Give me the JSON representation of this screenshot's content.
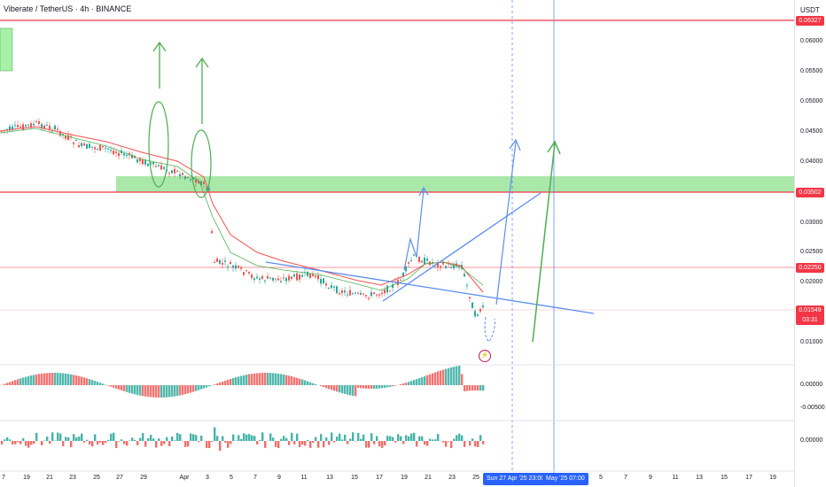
{
  "symbol_title": "Viberate / TetherUS · 4h · BINANCE",
  "currency": "USDT",
  "price_ticks": [
    "0.06000",
    "0.05500",
    "0.05000",
    "0.04500",
    "0.04000",
    "0.03000",
    "0.02500",
    "0.02000",
    "0.01000"
  ],
  "price_tags": [
    {
      "value": "0.06327",
      "color": "#f23645"
    },
    {
      "value": "0.03502",
      "color": "#f23645"
    },
    {
      "value": "0.02250",
      "color": "#f23645"
    }
  ],
  "last_price": {
    "value": "0.01549",
    "countdown": "03:31",
    "color": "#f23645"
  },
  "osc1_ticks": [
    "0.00000",
    "-0.00500"
  ],
  "osc2_ticks": [
    "0.00000"
  ],
  "x_labels": [
    "7",
    "19",
    "21",
    "23",
    "25",
    "27",
    "29",
    "Apr",
    "3",
    "5",
    "7",
    "9",
    "11",
    "13",
    "15",
    "17",
    "19",
    "21",
    "23",
    "25",
    "5",
    "7",
    "9",
    "11",
    "13",
    "15",
    "17",
    "19"
  ],
  "x_highlights": [
    "Sun 27 Apr '25  23:00",
    "May '25  07:00"
  ],
  "lightning_icon": "⚡",
  "colors": {
    "up": "#26a69a",
    "down": "#ef5350",
    "levels": "#f23645",
    "zone": "#8ee08e",
    "lines": "#5b8def",
    "arrow_green": "#4caf50"
  }
}
